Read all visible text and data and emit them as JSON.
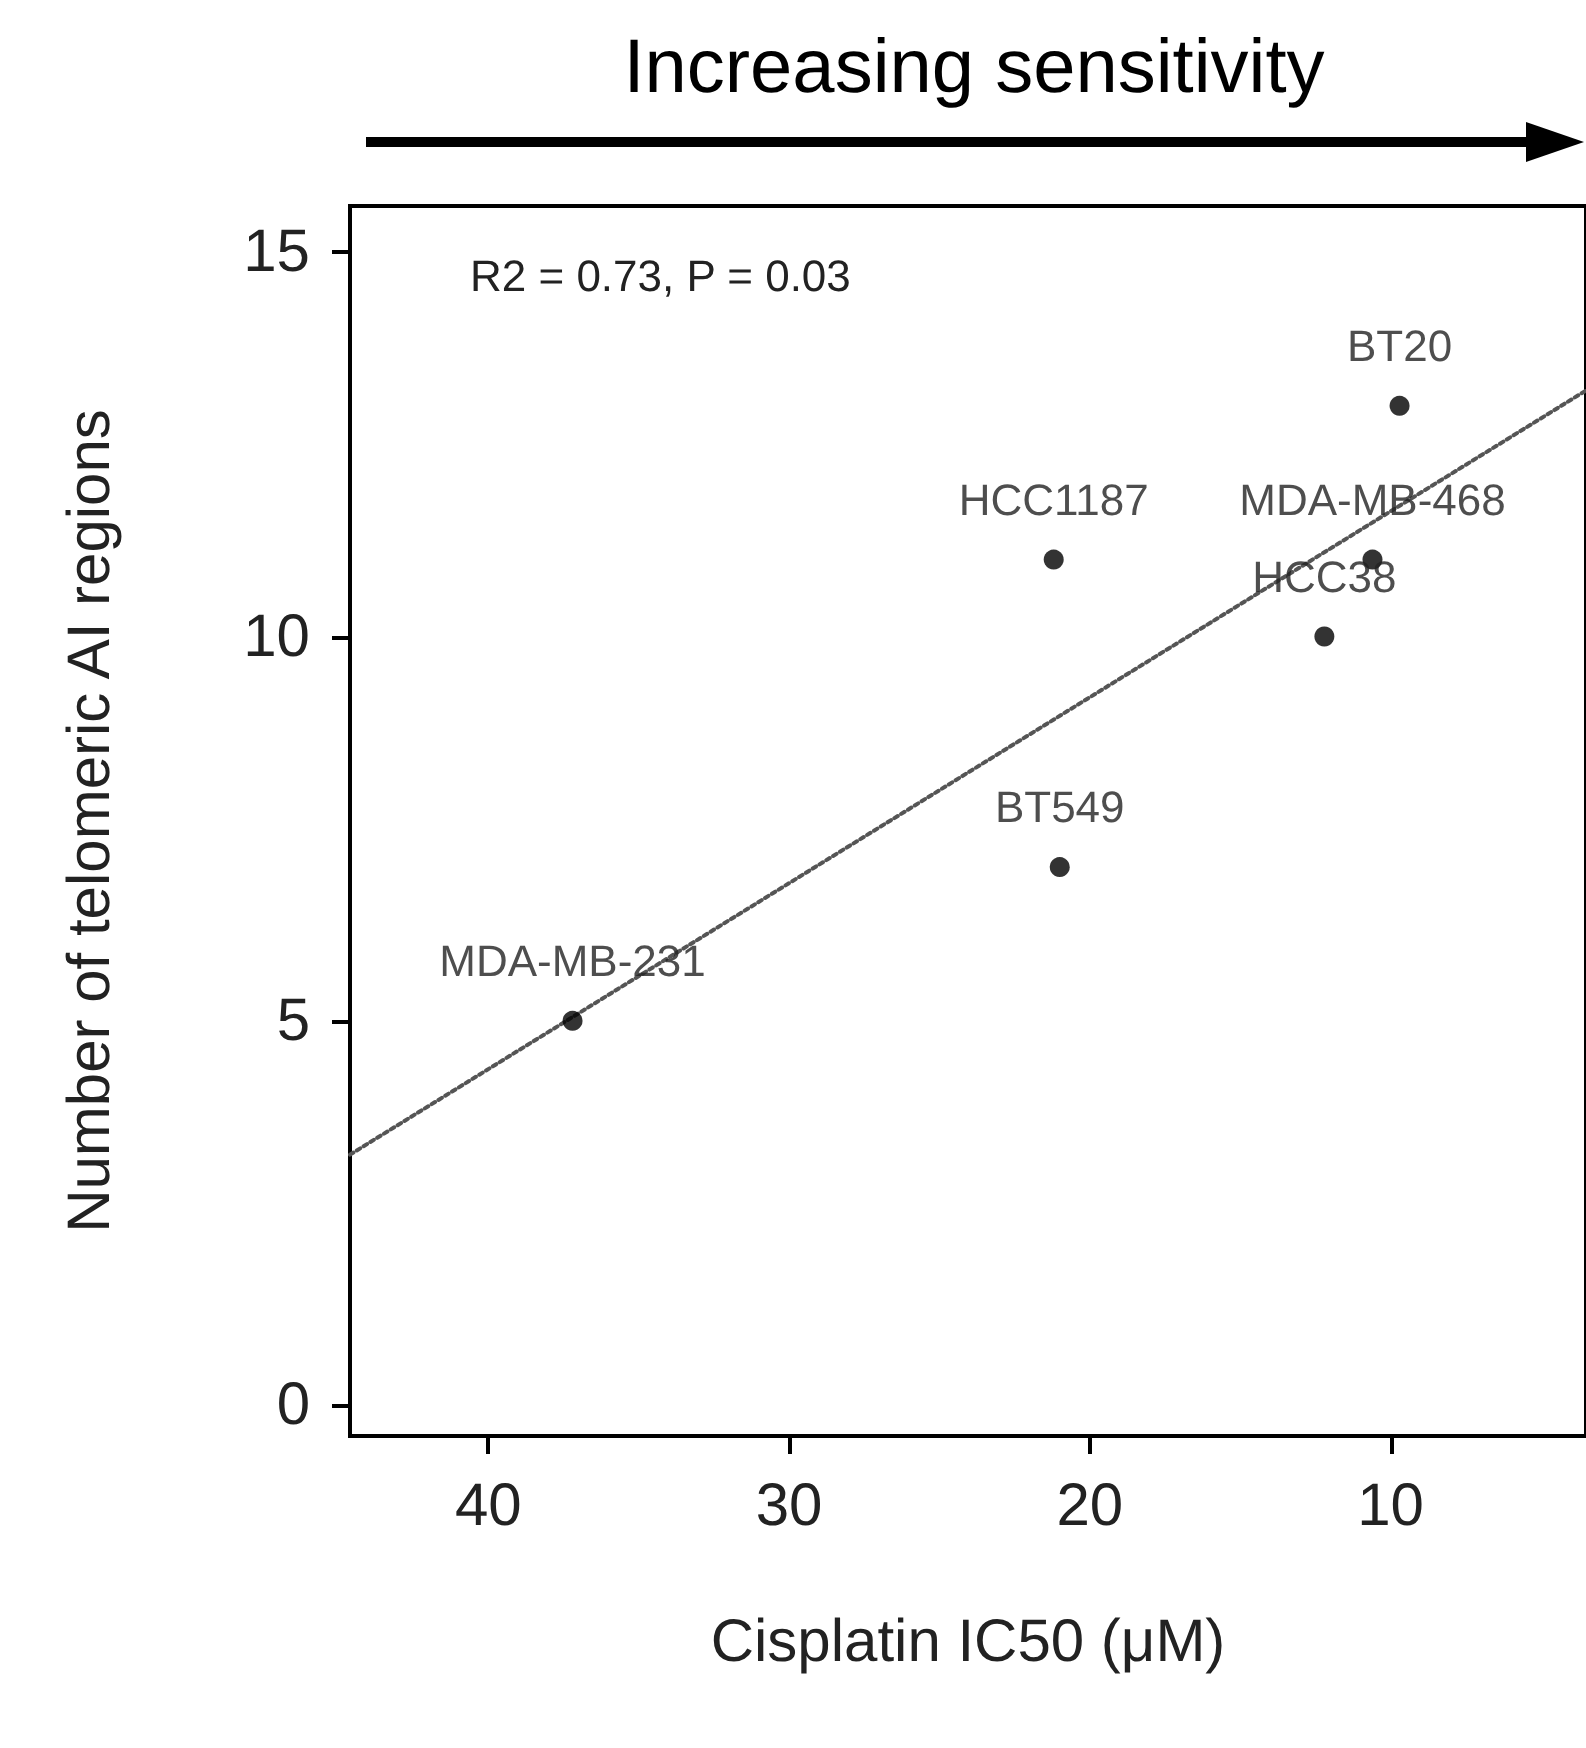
{
  "chart_data": {
    "type": "scatter",
    "title": "Increasing sensitivity",
    "xlabel": "Cisplatin IC50 (μM)",
    "ylabel": "Number of telomeric AI regions",
    "annotations": [
      "R2 = 0.73, P = 0.03"
    ],
    "xlim": [
      44.6,
      3.5
    ],
    "xticks": [
      40,
      30,
      20,
      10
    ],
    "ylim": [
      -0.4,
      15.6
    ],
    "yticks": [
      0,
      5,
      10,
      15
    ],
    "grid": false,
    "series": [
      {
        "color": "#000000",
        "marker": "circle",
        "x": [
          9.7,
          21.2,
          10.6,
          12.2,
          21,
          37.2
        ],
        "values": [
          13,
          11,
          11,
          10,
          7,
          5
        ],
        "value_labels": [
          "BT20",
          "HCC1187",
          "MDA-MB-468",
          "HCC38",
          "BT549",
          "MDA-MB-231"
        ]
      },
      {
        "type": "line",
        "color": "#555555",
        "marker": "none",
        "line_style": "dotted",
        "x": [
          44.6,
          3.5
        ],
        "values": [
          3.26,
          13.2
        ]
      }
    ]
  }
}
